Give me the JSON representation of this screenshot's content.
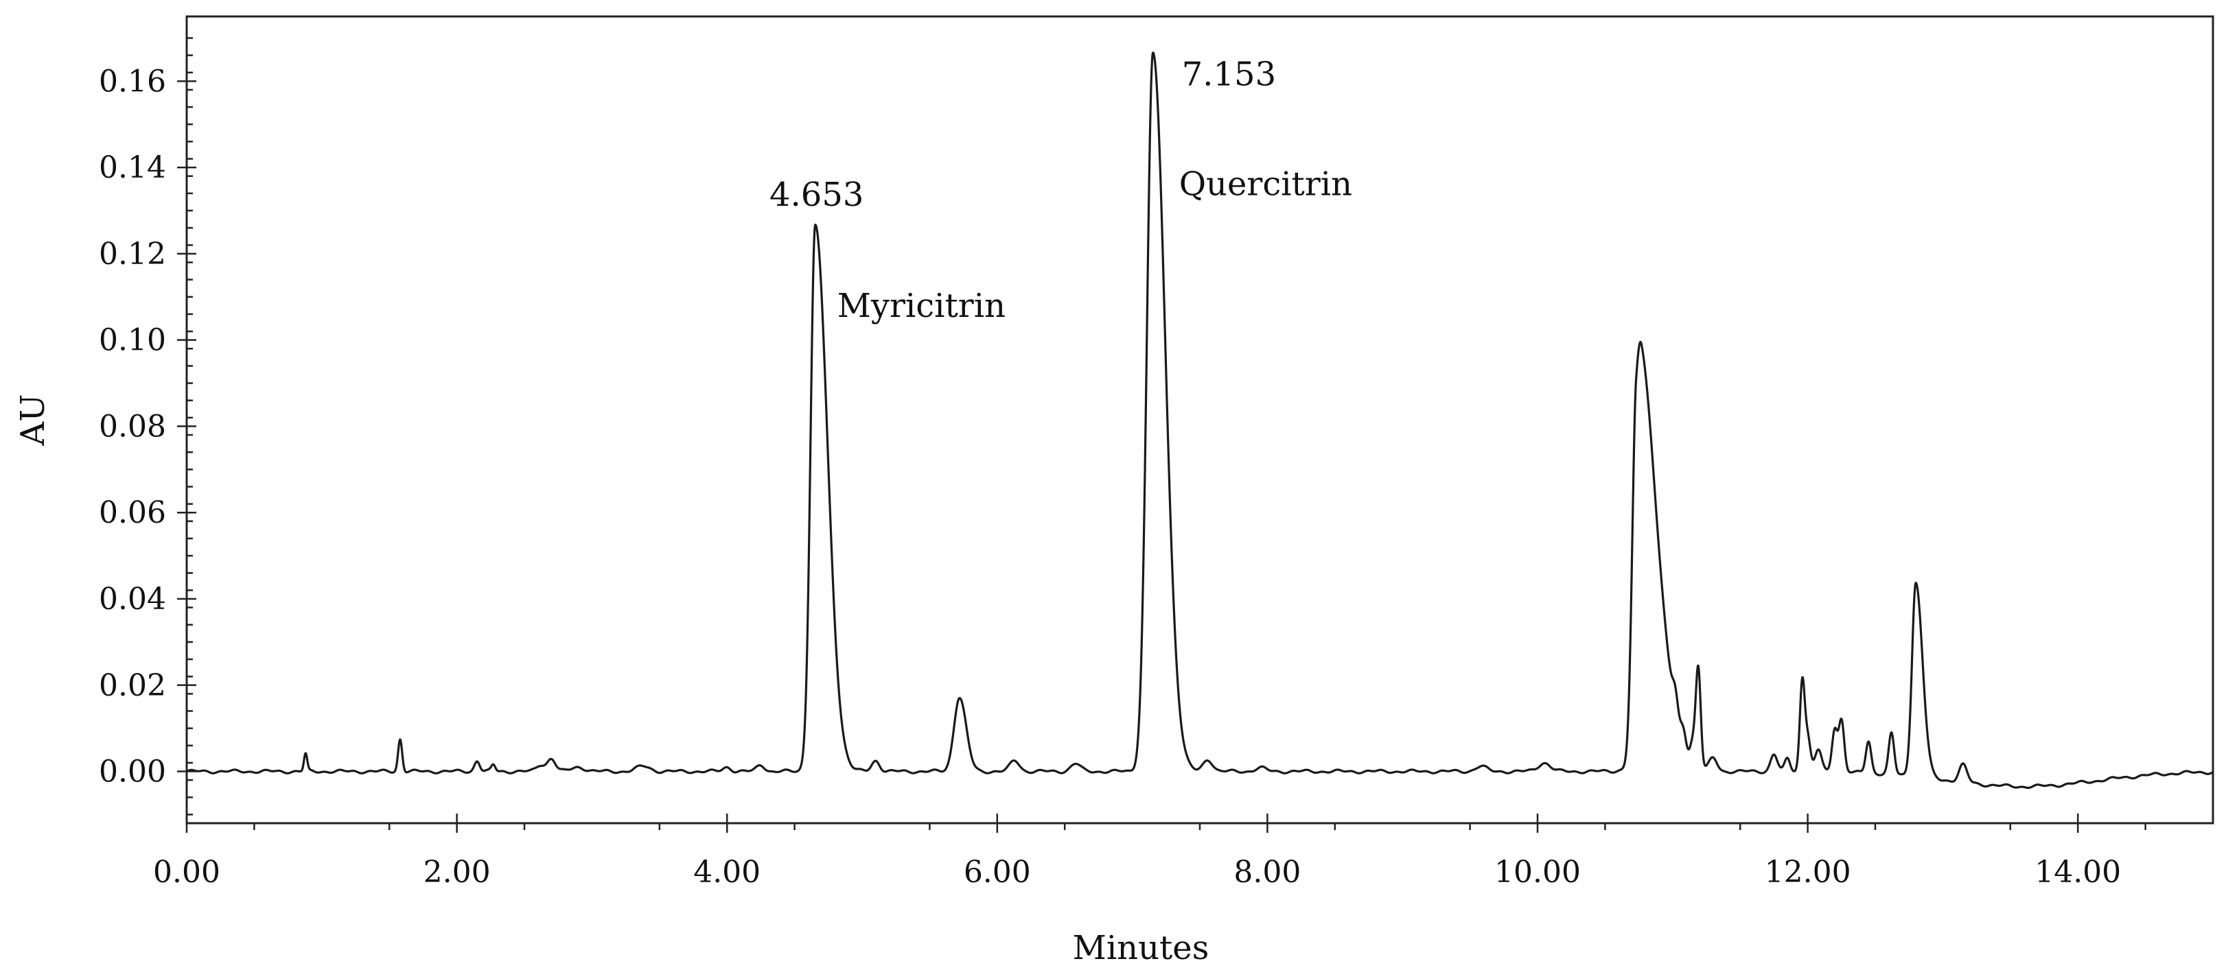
{
  "chart_data": {
    "type": "line",
    "xlabel": "Minutes",
    "ylabel": "AU",
    "xlim": [
      0,
      15
    ],
    "ylim": [
      -0.012,
      0.175
    ],
    "x_ticks": [
      0,
      2,
      4,
      6,
      8,
      10,
      12,
      14
    ],
    "x_tick_labels": [
      "0.00",
      "2.00",
      "4.00",
      "6.00",
      "8.00",
      "10.00",
      "12.00",
      "14.00"
    ],
    "y_ticks": [
      0,
      0.02,
      0.04,
      0.06,
      0.08,
      0.1,
      0.12,
      0.14,
      0.16
    ],
    "y_tick_labels": [
      "0.00",
      "0.02",
      "0.04",
      "0.06",
      "0.08",
      "0.10",
      "0.12",
      "0.14",
      "0.16"
    ],
    "grid": false,
    "annotations": [
      {
        "name": "myricitrin",
        "time_label": "4.653",
        "compound": "Myricitrin",
        "x": 4.653,
        "y": 0.127
      },
      {
        "name": "quercitrin",
        "time_label": "7.153",
        "compound": "Quercitrin",
        "x": 7.153,
        "y": 0.167
      }
    ],
    "peaks": [
      {
        "x": 0.88,
        "h": 0.004,
        "w": 0.012
      },
      {
        "x": 1.58,
        "h": 0.0075,
        "w": 0.015
      },
      {
        "x": 2.15,
        "h": 0.0025,
        "w": 0.02
      },
      {
        "x": 2.27,
        "h": 0.0015,
        "w": 0.015
      },
      {
        "x": 2.62,
        "h": 0.0015,
        "w": 0.03
      },
      {
        "x": 2.7,
        "h": 0.003,
        "w": 0.03
      },
      {
        "x": 2.9,
        "h": 0.001,
        "w": 0.05
      },
      {
        "x": 3.38,
        "h": 0.0012,
        "w": 0.05
      },
      {
        "x": 4.0,
        "h": 0.001,
        "w": 0.03
      },
      {
        "x": 4.25,
        "h": 0.0015,
        "w": 0.03
      },
      {
        "x": 4.653,
        "h": 0.1265,
        "w": 0.035,
        "tail": 0.09
      },
      {
        "x": 5.1,
        "h": 0.0025,
        "w": 0.03
      },
      {
        "x": 5.72,
        "h": 0.0172,
        "w": 0.04,
        "tail": 0.05
      },
      {
        "x": 6.13,
        "h": 0.0025,
        "w": 0.035
      },
      {
        "x": 6.58,
        "h": 0.0018,
        "w": 0.035
      },
      {
        "x": 7.153,
        "h": 0.1665,
        "w": 0.045,
        "tail": 0.09
      },
      {
        "x": 7.56,
        "h": 0.0028,
        "w": 0.035
      },
      {
        "x": 7.95,
        "h": 0.0008,
        "w": 0.04
      },
      {
        "x": 9.58,
        "h": 0.0012,
        "w": 0.04
      },
      {
        "x": 10.05,
        "h": 0.002,
        "w": 0.045
      },
      {
        "x": 10.73,
        "h": 0.0715,
        "w": 0.03,
        "tail": 0.12
      },
      {
        "x": 10.77,
        "h": 0.028,
        "w": 0.04,
        "tail": 0.15
      },
      {
        "x": 10.9,
        "h": 0.006,
        "w": 0.12
      },
      {
        "x": 11.02,
        "h": 0.005,
        "w": 0.02
      },
      {
        "x": 11.08,
        "h": 0.004,
        "w": 0.02
      },
      {
        "x": 11.15,
        "h": 0.005,
        "w": 0.02
      },
      {
        "x": 11.19,
        "h": 0.023,
        "w": 0.018
      },
      {
        "x": 11.3,
        "h": 0.003,
        "w": 0.03
      },
      {
        "x": 11.75,
        "h": 0.004,
        "w": 0.025
      },
      {
        "x": 11.85,
        "h": 0.003,
        "w": 0.02
      },
      {
        "x": 11.96,
        "h": 0.021,
        "w": 0.018
      },
      {
        "x": 12.0,
        "h": 0.008,
        "w": 0.02
      },
      {
        "x": 12.08,
        "h": 0.005,
        "w": 0.025
      },
      {
        "x": 12.2,
        "h": 0.01,
        "w": 0.02
      },
      {
        "x": 12.25,
        "h": 0.012,
        "w": 0.02
      },
      {
        "x": 12.45,
        "h": 0.0075,
        "w": 0.02
      },
      {
        "x": 12.62,
        "h": 0.0095,
        "w": 0.02
      },
      {
        "x": 12.8,
        "h": 0.045,
        "w": 0.028,
        "tail": 0.05
      },
      {
        "x": 13.15,
        "h": 0.004,
        "w": 0.03
      }
    ],
    "baseline_dip": {
      "center": 13.6,
      "depth": -0.0035,
      "width": 0.55
    }
  }
}
